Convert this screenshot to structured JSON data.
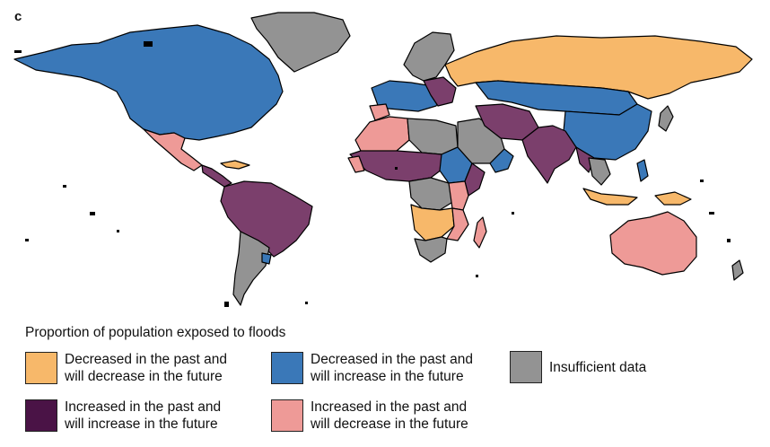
{
  "panel_label": "c",
  "legend": {
    "title": "Proportion of population exposed to floods",
    "items": [
      {
        "key": "dec_dec",
        "line1": "Decreased in the past and",
        "line2": "will decrease in the future",
        "color": "#f7b86a"
      },
      {
        "key": "dec_inc",
        "line1": "Decreased in the past and",
        "line2": "will increase in the future",
        "color": "#3a78b8"
      },
      {
        "key": "insufficient",
        "line1": "Insufficient data",
        "line2": "",
        "color": "#939393"
      },
      {
        "key": "inc_inc",
        "line1": "Increased in the past and",
        "line2": "will increase in the future",
        "color": "#4a1346"
      },
      {
        "key": "inc_dec",
        "line1": "Increased in the past and",
        "line2": "will decrease in the future",
        "color": "#ee9a97"
      }
    ]
  },
  "colors": {
    "dec_dec": "#f7b86a",
    "dec_inc": "#3a78b8",
    "insufficient": "#939393",
    "inc_inc_map": "#7b3f6c",
    "inc_dec": "#ee9a97",
    "border": "#000000"
  }
}
